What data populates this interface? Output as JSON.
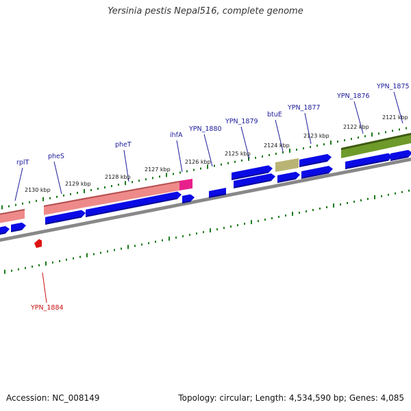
{
  "title": "Yersinia pestis Nepal516, complete genome",
  "footer": {
    "accession": "Accession: NC_008149",
    "stats": "Topology: circular; Length: 4,534,590 bp; Genes: 4,085"
  },
  "colors": {
    "cds": "#0a0ae6",
    "rRNA_like": "#ef8a8a",
    "pink": "#e8208c",
    "olive": "#b9b474",
    "green": "#6e9a2a",
    "tick": "#1a7a1a",
    "backbone": "#888888",
    "label_blue": "#1a1a9a",
    "label_red": "#cc1111"
  },
  "kbp_labels": [
    {
      "name": "kbp-2130",
      "text": "2130 kbp"
    },
    {
      "name": "kbp-2129",
      "text": "2129 kbp"
    },
    {
      "name": "kbp-2128",
      "text": "2128 kbp"
    },
    {
      "name": "kbp-2127",
      "text": "2127 kbp"
    },
    {
      "name": "kbp-2126",
      "text": "2126 kbp"
    },
    {
      "name": "kbp-2125",
      "text": "2125 kbp"
    },
    {
      "name": "kbp-2124",
      "text": "2124 kbp"
    },
    {
      "name": "kbp-2123",
      "text": "2123 kbp"
    },
    {
      "name": "kbp-2122",
      "text": "2122 kbp"
    },
    {
      "name": "kbp-2121",
      "text": "2121 kbp"
    }
  ],
  "gene_labels": [
    {
      "name": "gene-label-rplT",
      "text": "rplT"
    },
    {
      "name": "gene-label-pheS",
      "text": "pheS"
    },
    {
      "name": "gene-label-pheT",
      "text": "pheT"
    },
    {
      "name": "gene-label-ihfA",
      "text": "ihfA"
    },
    {
      "name": "gene-label-YPN_1880",
      "text": "YPN_1880"
    },
    {
      "name": "gene-label-YPN_1879",
      "text": "YPN_1879"
    },
    {
      "name": "gene-label-btuE",
      "text": "btuE"
    },
    {
      "name": "gene-label-YPN_1877",
      "text": "YPN_1877"
    },
    {
      "name": "gene-label-YPN_1876",
      "text": "YPN_1876"
    },
    {
      "name": "gene-label-YPN_1875",
      "text": "YPN_1875"
    },
    {
      "name": "gene-label-YPN_1884",
      "text": "YPN_1884"
    }
  ]
}
